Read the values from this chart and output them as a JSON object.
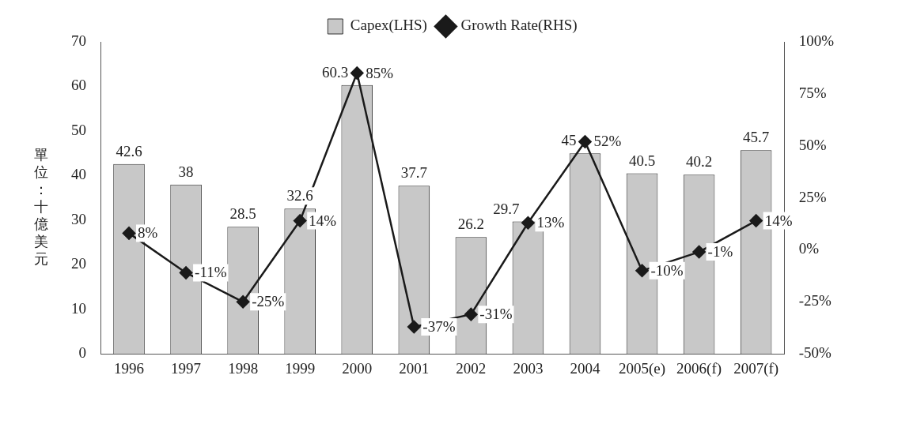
{
  "chart_data": {
    "type": "bar",
    "ylabel": "單位：十億美元",
    "categories": [
      "1996",
      "1997",
      "1998",
      "1999",
      "2000",
      "2001",
      "2002",
      "2003",
      "2004",
      "2005(e)",
      "2006(f)",
      "2007(f)"
    ],
    "series": [
      {
        "name": "Capex(LHS)",
        "color": "#c8c8c8",
        "values": [
          42.6,
          38,
          28.5,
          32.6,
          60.3,
          37.7,
          26.2,
          29.7,
          45,
          40.5,
          40.2,
          45.7
        ],
        "value_labels": [
          "42.6",
          "38",
          "28.5",
          "32.6",
          "60.3",
          "37.7",
          "26.2",
          "29.7",
          "45",
          "40.5",
          "40.2",
          "45.7"
        ]
      },
      {
        "name": "Growth Rate(RHS)",
        "type": "line",
        "axis": "y2",
        "color": "#1a1a1a",
        "values": [
          8,
          -11,
          -25,
          14,
          85,
          -37,
          -31,
          13,
          52,
          -10,
          -1,
          14
        ],
        "value_labels": [
          "8%",
          "-11%",
          "-25%",
          "14%",
          "85%",
          "-37%",
          "-31%",
          "13%",
          "52%",
          "-10%",
          "-1%",
          "14%"
        ]
      }
    ],
    "ylim": [
      0,
      70
    ],
    "yticks": [
      0,
      10,
      20,
      30,
      40,
      50,
      60,
      70
    ],
    "y2lim": [
      -50,
      100
    ],
    "y2ticks": [
      {
        "value": -50,
        "label": "-50%"
      },
      {
        "value": -25,
        "label": "-25%"
      },
      {
        "value": 0,
        "label": "0%"
      },
      {
        "value": 25,
        "label": "25%"
      },
      {
        "value": 50,
        "label": "50%"
      },
      {
        "value": 75,
        "label": "75%"
      },
      {
        "value": 100,
        "label": "100%"
      }
    ],
    "grid": false,
    "legend": "top",
    "marker": "diamond",
    "line_style": "solid"
  }
}
